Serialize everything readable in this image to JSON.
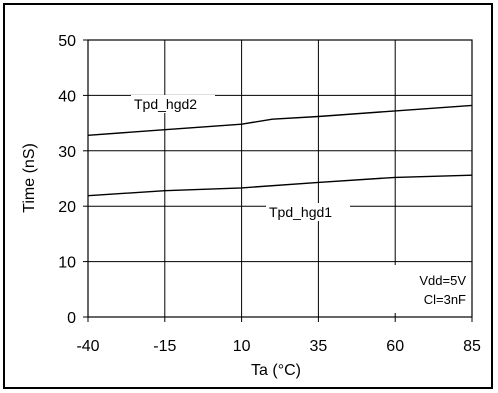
{
  "chart_data": {
    "type": "line",
    "xlabel": "Ta (°C)",
    "ylabel": "Time (nS)",
    "x_ticks": [
      -40,
      -15,
      10,
      35,
      60,
      85
    ],
    "y_ticks": [
      0,
      10,
      20,
      30,
      40,
      50
    ],
    "xlim": [
      -40,
      85
    ],
    "ylim": [
      0,
      50
    ],
    "grid": "horizontal and vertical",
    "series": [
      {
        "name": "Tpd_hgd2",
        "x": [
          -40,
          -15,
          10,
          20,
          35,
          60,
          85
        ],
        "y": [
          32.8,
          33.8,
          34.8,
          35.7,
          36.2,
          37.2,
          38.2
        ]
      },
      {
        "name": "Tpd_hgd1",
        "x": [
          -40,
          -15,
          10,
          35,
          60,
          85
        ],
        "y": [
          21.9,
          22.8,
          23.3,
          24.3,
          25.2,
          25.6
        ]
      }
    ],
    "annotation_lines": [
      "Vdd=5V",
      "Cl=3nF"
    ],
    "line_color": "#000000"
  }
}
